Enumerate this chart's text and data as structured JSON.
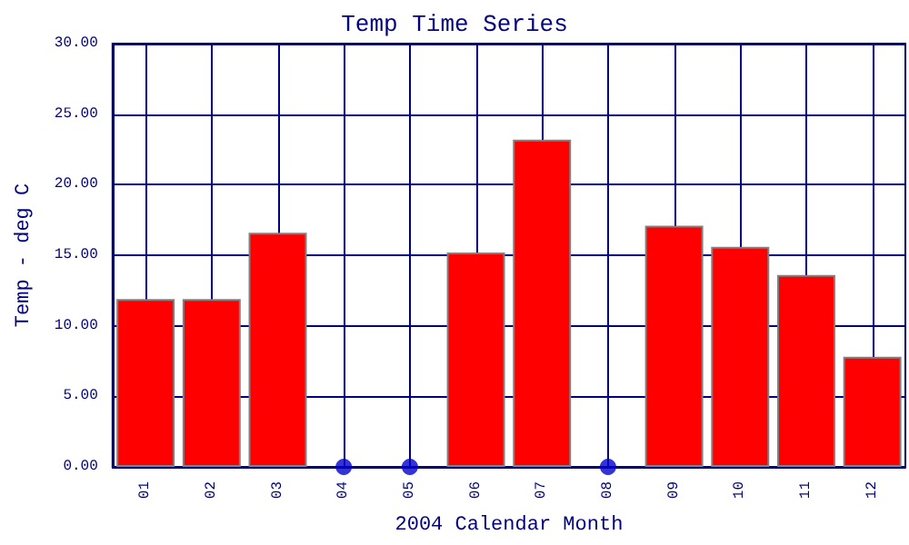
{
  "chart_data": {
    "type": "bar",
    "title": "Temp Time Series",
    "xlabel": "2004 Calendar Month",
    "ylabel": "Temp - deg C",
    "categories": [
      "01",
      "02",
      "03",
      "04",
      "05",
      "06",
      "07",
      "08",
      "09",
      "10",
      "11",
      "12"
    ],
    "series": [
      {
        "color": "#ff0000",
        "values": [
          11.9,
          11.9,
          16.6,
          null,
          null,
          15.2,
          23.2,
          null,
          17.1,
          15.6,
          13.6,
          7.8
        ]
      },
      {
        "type": "scatter",
        "color": "#0000cc",
        "x": [
          "04",
          "05",
          "08"
        ],
        "values": [
          0,
          0,
          0
        ]
      }
    ],
    "ylim": [
      0,
      30
    ],
    "yticks": [
      {
        "value": 0,
        "label": "0.00"
      },
      {
        "value": 5,
        "label": "5.00"
      },
      {
        "value": 10,
        "label": "10.00"
      },
      {
        "value": 15,
        "label": "15.00"
      },
      {
        "value": 20,
        "label": "20.00"
      },
      {
        "value": 25,
        "label": "25.00"
      },
      {
        "value": 30,
        "label": "30.00"
      }
    ],
    "grid": true,
    "marker": "circle"
  }
}
